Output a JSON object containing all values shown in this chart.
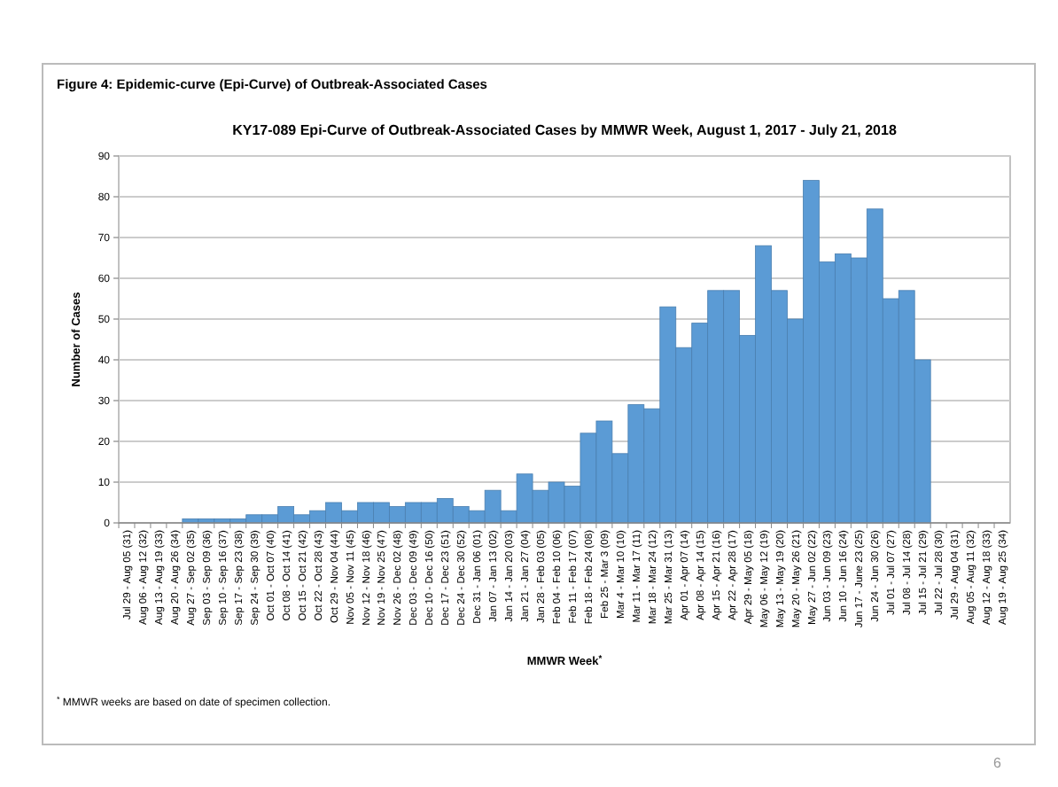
{
  "chart_data": {
    "type": "bar",
    "title": "KY17-089 Epi-Curve of Outbreak-Associated Cases by MMWR Week, August 1, 2017 - July 21, 2018",
    "xlabel": "MMWR Week$^{*}$",
    "ylabel": "Number of Cases",
    "annotations": [
      "Figure 4: Epidemic-curve (Epi-Curve) of Outbreak-Associated Cases",
      "$^{*}$ MMWR weeks are based on date of specimen collection.",
      "6"
    ],
    "categories": [
      "Jul 29 - Aug 05 (31)",
      "Aug 06 - Aug 12 (32)",
      "Aug 13 - Aug 19 (33)",
      "Aug 20 - Aug 26 (34)",
      "Aug 27 - Sep 02 (35)",
      "Sep 03 - Sep 09 (36)",
      "Sep 10 - Sep 16 (37)",
      "Sep 17 - Sep 23 (38)",
      "Sep 24 - Sep 30 (39)",
      "Oct 01 - Oct 07 (40)",
      "Oct 08 - Oct 14 (41)",
      "Oct 15 - Oct 21 (42)",
      "Oct 22 - Oct 28 (43)",
      "Oct 29 - Nov 04 (44)",
      "Nov 05 - Nov 11 (45)",
      "Nov 12 - Nov 18 (46)",
      "Nov 19 - Nov 25 (47)",
      "Nov 26 - Dec 02 (48)",
      "Dec 03 - Dec 09 (49)",
      "Dec 10 - Dec 16 (50)",
      "Dec 17 - Dec 23 (51)",
      "Dec 24 - Dec 30 (52)",
      "Dec 31 - Jan 06 (01)",
      "Jan 07 - Jan 13 (02)",
      "Jan 14 - Jan 20 (03)",
      "Jan 21 - Jan 27 (04)",
      "Jan 28 - Feb 03 (05)",
      "Feb 04 - Feb 10 (06)",
      "Feb 11 - Feb 17 (07)",
      "Feb 18 - Feb 24 (08)",
      "Feb 25 - Mar 3 (09)",
      "Mar 4 - Mar 10 (10)",
      "Mar 11 - Mar 17 (11)",
      "Mar 18 - Mar 24 (12)",
      "Mar 25 - Mar 31 (13)",
      "Apr 01 - Apr 07 (14)",
      "Apr 08 - Apr 14 (15)",
      "Apr 15 - Apr 21 (16)",
      "Apr 22 - Apr 28 (17)",
      "Apr 29 - May 05 (18)",
      "May 06 - May 12 (19)",
      "May 13 - May 19 (20)",
      "May 20 - May 26 (21)",
      "May 27 - Jun 02 (22)",
      "Jun 03 - Jun 09 (23)",
      "Jun 10 - Jun 16 (24)",
      "Jun 17 - June 23 (25)",
      "Jun 24 - Jun 30 (26)",
      "Jul 01 - Jul 07 (27)",
      "Jul 08 - Jul 14 (28)",
      "Jul 15 - Jul 21 (29)",
      "Jul 22 - Jul 28 (30)",
      "Jul 29 - Aug 04 (31)",
      "Aug 05 - Aug 11 (32)",
      "Aug 12 - Aug 18 (33)",
      "Aug 19 - Aug 25 (34)"
    ],
    "values": [
      0,
      0,
      0,
      0,
      1,
      1,
      1,
      1,
      2,
      2,
      4,
      2,
      3,
      5,
      3,
      5,
      5,
      4,
      5,
      5,
      6,
      4,
      3,
      8,
      3,
      12,
      8,
      10,
      9,
      22,
      25,
      17,
      29,
      28,
      53,
      43,
      49,
      57,
      57,
      46,
      68,
      57,
      50,
      84,
      64,
      66,
      65,
      77,
      55,
      57,
      40,
      0,
      0,
      0,
      0,
      0
    ],
    "color": "#5b9bd5",
    "ylim": [
      0,
      90
    ],
    "yticks": [
      0,
      10,
      20,
      30,
      40,
      50,
      60,
      70,
      80,
      90
    ],
    "grid": "y"
  }
}
